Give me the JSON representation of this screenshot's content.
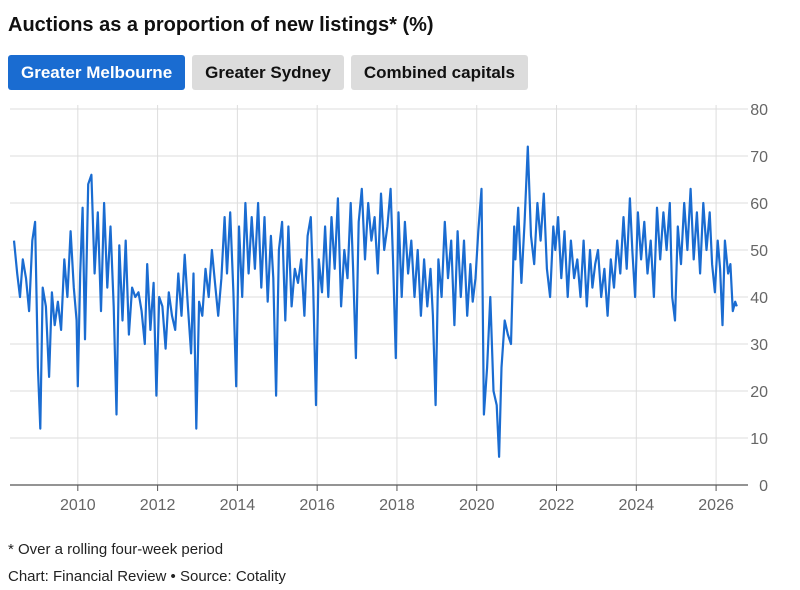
{
  "title": "Auctions as a proportion of new listings* (%)",
  "tabs": [
    {
      "label": "Greater Melbourne",
      "active": true
    },
    {
      "label": "Greater Sydney",
      "active": false
    },
    {
      "label": "Combined capitals",
      "active": false
    }
  ],
  "footnote": "* Over a rolling four-week period",
  "credit": "Chart: Financial Review • Source: Cotality",
  "colors": {
    "accent": "#1a6cd1",
    "line": "#1a6cd1",
    "grid": "#dddddd",
    "tab_inactive": "#dcdcdc"
  },
  "chart_data": {
    "type": "line",
    "title": "",
    "xlabel": "",
    "ylabel": "",
    "ylim": [
      0,
      80
    ],
    "xlim": [
      2008.3,
      2026.8
    ],
    "grid": true,
    "legend": "none",
    "x_ticks": [
      2010,
      2012,
      2014,
      2016,
      2018,
      2020,
      2022,
      2024,
      2026
    ],
    "y_ticks": [
      0,
      10,
      20,
      30,
      40,
      50,
      60,
      70,
      80
    ],
    "series": [
      {
        "name": "",
        "points": [
          [
            2008.4,
            52
          ],
          [
            2008.48,
            45
          ],
          [
            2008.55,
            40
          ],
          [
            2008.62,
            48
          ],
          [
            2008.7,
            44
          ],
          [
            2008.78,
            37
          ],
          [
            2008.86,
            52
          ],
          [
            2008.93,
            56
          ],
          [
            2009.0,
            25
          ],
          [
            2009.06,
            12
          ],
          [
            2009.12,
            42
          ],
          [
            2009.2,
            38
          ],
          [
            2009.28,
            23
          ],
          [
            2009.35,
            41
          ],
          [
            2009.42,
            34
          ],
          [
            2009.5,
            39
          ],
          [
            2009.58,
            33
          ],
          [
            2009.66,
            48
          ],
          [
            2009.74,
            40
          ],
          [
            2009.82,
            54
          ],
          [
            2009.9,
            42
          ],
          [
            2009.97,
            35
          ],
          [
            2010.0,
            21
          ],
          [
            2010.06,
            45
          ],
          [
            2010.12,
            59
          ],
          [
            2010.18,
            31
          ],
          [
            2010.26,
            64
          ],
          [
            2010.34,
            66
          ],
          [
            2010.42,
            45
          ],
          [
            2010.5,
            58
          ],
          [
            2010.58,
            37
          ],
          [
            2010.66,
            60
          ],
          [
            2010.74,
            42
          ],
          [
            2010.82,
            55
          ],
          [
            2010.9,
            38
          ],
          [
            2010.97,
            15
          ],
          [
            2011.04,
            51
          ],
          [
            2011.12,
            35
          ],
          [
            2011.2,
            52
          ],
          [
            2011.28,
            32
          ],
          [
            2011.36,
            42
          ],
          [
            2011.44,
            40
          ],
          [
            2011.52,
            41
          ],
          [
            2011.6,
            37
          ],
          [
            2011.68,
            30
          ],
          [
            2011.74,
            47
          ],
          [
            2011.82,
            33
          ],
          [
            2011.9,
            43
          ],
          [
            2011.97,
            19
          ],
          [
            2012.04,
            40
          ],
          [
            2012.12,
            38
          ],
          [
            2012.2,
            29
          ],
          [
            2012.28,
            41
          ],
          [
            2012.36,
            36
          ],
          [
            2012.44,
            33
          ],
          [
            2012.52,
            45
          ],
          [
            2012.6,
            36
          ],
          [
            2012.68,
            49
          ],
          [
            2012.76,
            38
          ],
          [
            2012.84,
            28
          ],
          [
            2012.9,
            45
          ],
          [
            2012.97,
            12
          ],
          [
            2013.04,
            39
          ],
          [
            2013.12,
            36
          ],
          [
            2013.2,
            46
          ],
          [
            2013.28,
            40
          ],
          [
            2013.36,
            50
          ],
          [
            2013.44,
            43
          ],
          [
            2013.52,
            36
          ],
          [
            2013.6,
            44
          ],
          [
            2013.68,
            57
          ],
          [
            2013.74,
            45
          ],
          [
            2013.82,
            58
          ],
          [
            2013.9,
            41
          ],
          [
            2013.97,
            21
          ],
          [
            2014.04,
            55
          ],
          [
            2014.12,
            40
          ],
          [
            2014.2,
            60
          ],
          [
            2014.28,
            45
          ],
          [
            2014.36,
            57
          ],
          [
            2014.44,
            46
          ],
          [
            2014.52,
            60
          ],
          [
            2014.6,
            42
          ],
          [
            2014.68,
            57
          ],
          [
            2014.76,
            39
          ],
          [
            2014.84,
            53
          ],
          [
            2014.9,
            44
          ],
          [
            2014.97,
            19
          ],
          [
            2015.04,
            50
          ],
          [
            2015.12,
            56
          ],
          [
            2015.2,
            35
          ],
          [
            2015.28,
            55
          ],
          [
            2015.36,
            38
          ],
          [
            2015.44,
            46
          ],
          [
            2015.52,
            43
          ],
          [
            2015.6,
            48
          ],
          [
            2015.68,
            36
          ],
          [
            2015.76,
            53
          ],
          [
            2015.84,
            57
          ],
          [
            2015.9,
            42
          ],
          [
            2015.97,
            17
          ],
          [
            2016.04,
            48
          ],
          [
            2016.12,
            41
          ],
          [
            2016.2,
            55
          ],
          [
            2016.28,
            40
          ],
          [
            2016.36,
            57
          ],
          [
            2016.44,
            46
          ],
          [
            2016.52,
            61
          ],
          [
            2016.6,
            38
          ],
          [
            2016.68,
            50
          ],
          [
            2016.76,
            44
          ],
          [
            2016.84,
            60
          ],
          [
            2016.9,
            46
          ],
          [
            2016.97,
            27
          ],
          [
            2017.04,
            56
          ],
          [
            2017.12,
            63
          ],
          [
            2017.2,
            48
          ],
          [
            2017.28,
            60
          ],
          [
            2017.36,
            52
          ],
          [
            2017.44,
            57
          ],
          [
            2017.52,
            45
          ],
          [
            2017.6,
            62
          ],
          [
            2017.68,
            50
          ],
          [
            2017.76,
            55
          ],
          [
            2017.84,
            63
          ],
          [
            2017.9,
            48
          ],
          [
            2017.97,
            27
          ],
          [
            2018.04,
            58
          ],
          [
            2018.12,
            40
          ],
          [
            2018.2,
            56
          ],
          [
            2018.28,
            45
          ],
          [
            2018.36,
            52
          ],
          [
            2018.44,
            40
          ],
          [
            2018.52,
            50
          ],
          [
            2018.6,
            36
          ],
          [
            2018.68,
            48
          ],
          [
            2018.76,
            38
          ],
          [
            2018.84,
            46
          ],
          [
            2018.9,
            36
          ],
          [
            2018.97,
            17
          ],
          [
            2019.04,
            48
          ],
          [
            2019.12,
            40
          ],
          [
            2019.2,
            56
          ],
          [
            2019.28,
            44
          ],
          [
            2019.36,
            52
          ],
          [
            2019.44,
            34
          ],
          [
            2019.52,
            54
          ],
          [
            2019.6,
            40
          ],
          [
            2019.68,
            52
          ],
          [
            2019.76,
            36
          ],
          [
            2019.84,
            47
          ],
          [
            2019.9,
            39
          ],
          [
            2019.97,
            44
          ],
          [
            2020.04,
            54
          ],
          [
            2020.12,
            63
          ],
          [
            2020.18,
            15
          ],
          [
            2020.26,
            25
          ],
          [
            2020.34,
            40
          ],
          [
            2020.42,
            20
          ],
          [
            2020.5,
            17
          ],
          [
            2020.56,
            6
          ],
          [
            2020.62,
            25
          ],
          [
            2020.7,
            35
          ],
          [
            2020.78,
            32
          ],
          [
            2020.86,
            30
          ],
          [
            2020.94,
            55
          ],
          [
            2020.97,
            48
          ],
          [
            2021.04,
            59
          ],
          [
            2021.12,
            43
          ],
          [
            2021.2,
            56
          ],
          [
            2021.28,
            72
          ],
          [
            2021.36,
            53
          ],
          [
            2021.44,
            47
          ],
          [
            2021.52,
            60
          ],
          [
            2021.6,
            52
          ],
          [
            2021.68,
            62
          ],
          [
            2021.76,
            46
          ],
          [
            2021.84,
            40
          ],
          [
            2021.92,
            55
          ],
          [
            2021.97,
            50
          ],
          [
            2022.04,
            57
          ],
          [
            2022.12,
            44
          ],
          [
            2022.2,
            54
          ],
          [
            2022.28,
            40
          ],
          [
            2022.36,
            52
          ],
          [
            2022.44,
            44
          ],
          [
            2022.52,
            48
          ],
          [
            2022.6,
            40
          ],
          [
            2022.68,
            52
          ],
          [
            2022.76,
            38
          ],
          [
            2022.84,
            50
          ],
          [
            2022.9,
            42
          ],
          [
            2022.97,
            47
          ],
          [
            2023.04,
            50
          ],
          [
            2023.12,
            40
          ],
          [
            2023.2,
            46
          ],
          [
            2023.28,
            36
          ],
          [
            2023.36,
            48
          ],
          [
            2023.44,
            42
          ],
          [
            2023.52,
            52
          ],
          [
            2023.6,
            45
          ],
          [
            2023.68,
            57
          ],
          [
            2023.76,
            46
          ],
          [
            2023.84,
            61
          ],
          [
            2023.9,
            50
          ],
          [
            2023.97,
            40
          ],
          [
            2024.04,
            58
          ],
          [
            2024.12,
            48
          ],
          [
            2024.2,
            56
          ],
          [
            2024.28,
            45
          ],
          [
            2024.36,
            52
          ],
          [
            2024.44,
            40
          ],
          [
            2024.52,
            59
          ],
          [
            2024.6,
            48
          ],
          [
            2024.68,
            58
          ],
          [
            2024.76,
            50
          ],
          [
            2024.84,
            60
          ],
          [
            2024.9,
            40
          ],
          [
            2024.97,
            35
          ],
          [
            2025.04,
            55
          ],
          [
            2025.12,
            47
          ],
          [
            2025.2,
            60
          ],
          [
            2025.28,
            50
          ],
          [
            2025.36,
            63
          ],
          [
            2025.44,
            48
          ],
          [
            2025.52,
            58
          ],
          [
            2025.6,
            45
          ],
          [
            2025.68,
            60
          ],
          [
            2025.76,
            50
          ],
          [
            2025.84,
            58
          ],
          [
            2025.9,
            47
          ],
          [
            2025.97,
            41
          ],
          [
            2026.04,
            52
          ],
          [
            2026.1,
            46
          ],
          [
            2026.16,
            34
          ],
          [
            2026.22,
            52
          ],
          [
            2026.3,
            45
          ],
          [
            2026.36,
            47
          ],
          [
            2026.42,
            37
          ],
          [
            2026.48,
            39
          ],
          [
            2026.52,
            38
          ]
        ]
      }
    ]
  }
}
